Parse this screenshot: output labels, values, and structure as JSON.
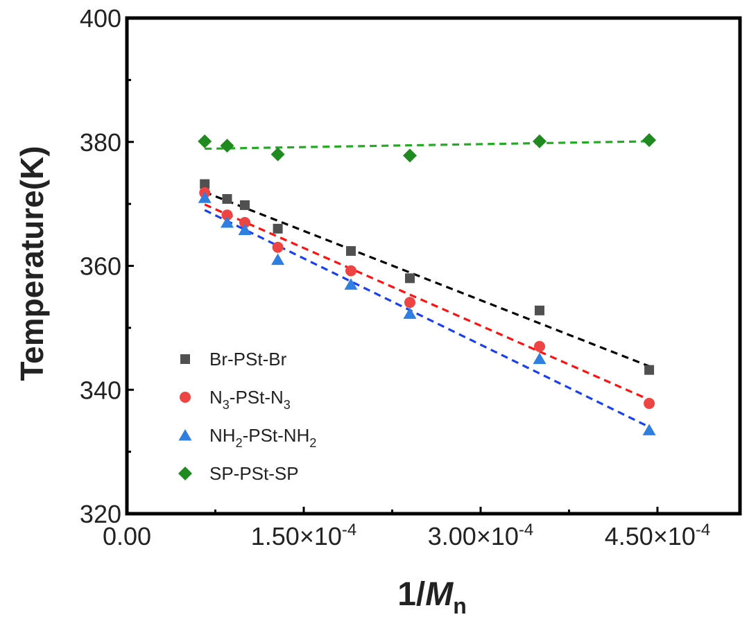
{
  "chart_data": {
    "type": "scatter",
    "title": "",
    "xlabel": "1/Mn",
    "xlabel_parts": {
      "prefix": "1/",
      "main": "M",
      "sub": "n"
    },
    "ylabel": "Temperature(K)",
    "xlim": [
      0,
      0.00052
    ],
    "ylim": [
      320,
      400
    ],
    "grid": false,
    "legend_position": "bottom-left",
    "x_ticks": [
      {
        "value": 0,
        "label": "0.00",
        "exp": ""
      },
      {
        "value": 0.00015,
        "label": "1.50×10",
        "exp": "-4"
      },
      {
        "value": 0.0003,
        "label": "3.00×10",
        "exp": "-4"
      },
      {
        "value": 0.00045,
        "label": "4.50×10",
        "exp": "-4"
      }
    ],
    "y_ticks": [
      {
        "value": 320,
        "label": "320"
      },
      {
        "value": 340,
        "label": "340"
      },
      {
        "value": 360,
        "label": "360"
      },
      {
        "value": 380,
        "label": "380"
      },
      {
        "value": 400,
        "label": "400"
      }
    ],
    "series": [
      {
        "name": "Br-PSt-Br",
        "legend": {
          "t1": "Br-PSt-Br",
          "s1": "",
          "t2": "",
          "s2": ""
        },
        "marker": "square",
        "color": "#505050",
        "fit_color": "#000000",
        "x": [
          6.6e-05,
          8.5e-05,
          0.0001,
          0.000128,
          0.00019,
          0.00024,
          0.00035,
          0.000443
        ],
        "y": [
          373.2,
          370.8,
          369.8,
          366.0,
          362.4,
          358.0,
          352.8,
          343.2
        ],
        "fit": [
          [
            6.6e-05,
            371.9
          ],
          [
            0.000443,
            343.8
          ]
        ]
      },
      {
        "name": "N3-PSt-N3",
        "legend": {
          "t1": "N",
          "s1": "3",
          "t2": "-PSt-N",
          "s2": "3"
        },
        "marker": "circle",
        "color": "#ee4444",
        "fit_color": "#ff1111",
        "x": [
          6.6e-05,
          8.5e-05,
          0.0001,
          0.000128,
          0.00019,
          0.00024,
          0.00035,
          0.000443
        ],
        "y": [
          371.8,
          368.2,
          367.0,
          363.0,
          359.2,
          354.1,
          347.0,
          337.8
        ],
        "fit": [
          [
            6.6e-05,
            369.9
          ],
          [
            0.000443,
            338.4
          ]
        ]
      },
      {
        "name": "NH2-PSt-NH2",
        "legend": {
          "t1": "NH",
          "s1": "2",
          "t2": "-PSt-NH",
          "s2": "2"
        },
        "marker": "triangle",
        "color": "#2f7fe0",
        "fit_color": "#1a3ff0",
        "x": [
          6.6e-05,
          8.5e-05,
          0.0001,
          0.000128,
          0.00019,
          0.00024,
          0.00035,
          0.000443
        ],
        "y": [
          371.0,
          367.0,
          365.8,
          361.0,
          357.0,
          352.3,
          345.0,
          333.5
        ],
        "fit": [
          [
            6.6e-05,
            369.0
          ],
          [
            0.000443,
            334.0
          ]
        ]
      },
      {
        "name": "SP-PSt-SP",
        "legend": {
          "t1": "SP-PSt-SP",
          "s1": "",
          "t2": "",
          "s2": ""
        },
        "marker": "diamond",
        "color": "#1f8a1f",
        "fit_color": "#22aa22",
        "x": [
          6.6e-05,
          8.5e-05,
          0.000128,
          0.00024,
          0.00035,
          0.000443
        ],
        "y": [
          380.1,
          379.4,
          378.0,
          377.8,
          380.1,
          380.3
        ],
        "fit": [
          [
            6.6e-05,
            378.9
          ],
          [
            0.000443,
            380.1
          ]
        ]
      }
    ]
  }
}
